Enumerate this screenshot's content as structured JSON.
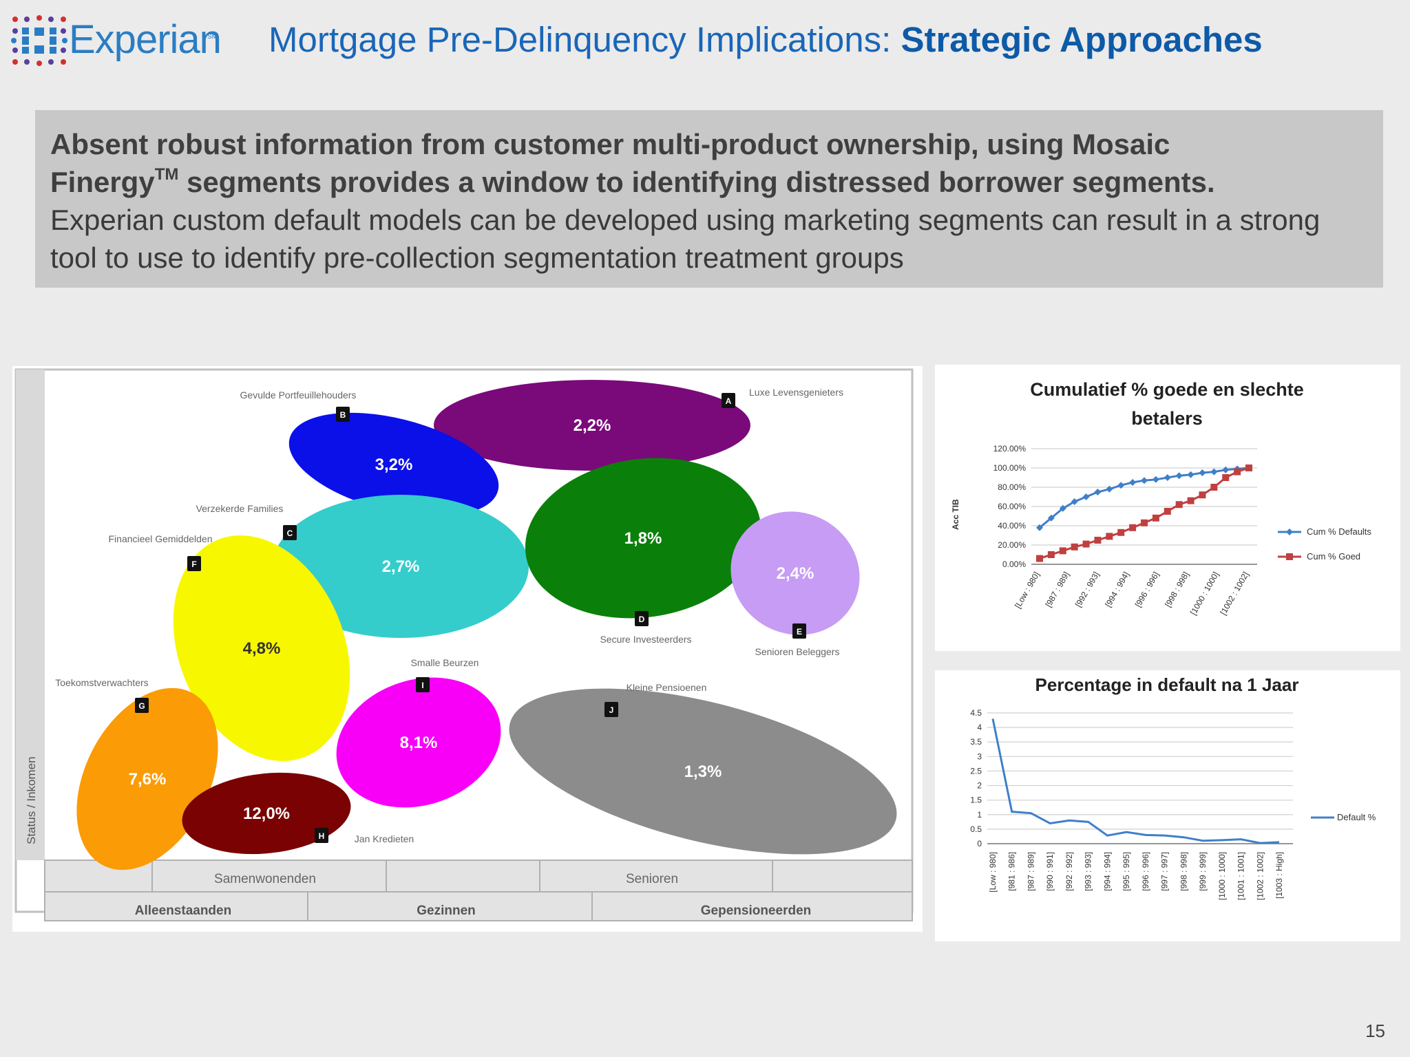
{
  "logo": {
    "text": "Experian",
    "mark": "SM"
  },
  "header": {
    "title_regular": "Mortgage Pre-Delinquency Implications: ",
    "title_bold": "Strategic Approaches"
  },
  "callout": {
    "bold_line1": "Absent robust information from customer multi-product ownership, using Mosaic",
    "bold_line2a": "Finergy",
    "bold_sup": "TM",
    "bold_line2b": " segments provides a window to identifying distressed borrower segments.",
    "body": "Experian custom default models can be developed using marketing segments can result in a strong tool to use to identify pre-collection segmentation treatment groups"
  },
  "page_number": "15",
  "colors": {
    "blue_title": "#1a66b8",
    "callout_bg": "#c8c8c8",
    "cum_defaults": "#3f7fc9",
    "cum_goed": "#c0403f",
    "default_line": "#3f7fc9"
  },
  "mosaic": {
    "y_axis_label": "Status / Inkomen",
    "row1_labels": [
      "Samenwonenden",
      "Senioren"
    ],
    "row2_labels": [
      "Alleenstaanden",
      "Gezinnen",
      "Gepensioneerden"
    ],
    "segments": [
      {
        "letter": "A",
        "name": "Luxe Levensgenieters",
        "value": "2,2%",
        "color": "#7a0a7a"
      },
      {
        "letter": "B",
        "name": "Gevulde Portfeuillehouders",
        "value": "3,2%",
        "color": "#0c10e8"
      },
      {
        "letter": "C",
        "name": "Verzekerde Families",
        "value": "2,7%",
        "color": "#35cccc"
      },
      {
        "letter": "D",
        "name": "Secure Investeerders",
        "value": "1,8%",
        "color": "#0a800a"
      },
      {
        "letter": "E",
        "name": "Senioren Beleggers",
        "value": "2,4%",
        "color": "#c79cf4"
      },
      {
        "letter": "F",
        "name": "Financieel Gemiddelden",
        "value": "4,8%",
        "color": "#f7f700"
      },
      {
        "letter": "G",
        "name": "Toekomstverwachters",
        "value": "7,6%",
        "color": "#fb9b06"
      },
      {
        "letter": "H",
        "name": "Jan Kredieten",
        "value": "12,0%",
        "color": "#7a0202"
      },
      {
        "letter": "I",
        "name": "Smalle Beurzen",
        "value": "8,1%",
        "color": "#f800f8"
      },
      {
        "letter": "J",
        "name": "Kleine Pensioenen",
        "value": "1,3%",
        "color": "#8c8c8c"
      }
    ]
  },
  "chart_data": [
    {
      "type": "line",
      "title": "Cumulatief % goede en slechte betalers",
      "ylabel": "Acc TIB",
      "ylim": [
        0,
        120
      ],
      "yticks": [
        "0.00%",
        "20.00%",
        "40.00%",
        "60.00%",
        "80.00%",
        "100.00%",
        "120.00%"
      ],
      "categories": [
        "[Low : 980]",
        "[987 : 989]",
        "[992 : 993]",
        "[994 : 994]",
        "[996 : 996]",
        "[998 : 998]",
        "[1000 : 1000]",
        "[1002 : 1002]"
      ],
      "x": [
        1,
        2,
        3,
        4,
        5,
        6,
        7,
        8,
        9,
        10,
        11,
        12,
        13,
        14,
        15,
        16,
        17,
        18,
        19
      ],
      "series": [
        {
          "name": "Cum % Defaults",
          "values": [
            38,
            48,
            58,
            65,
            70,
            75,
            78,
            82,
            85,
            87,
            88,
            90,
            92,
            93,
            95,
            96,
            98,
            99,
            100
          ]
        },
        {
          "name": "Cum % Goed",
          "values": [
            6,
            10,
            14,
            18,
            21,
            25,
            29,
            33,
            38,
            43,
            48,
            55,
            62,
            66,
            72,
            80,
            90,
            96,
            100
          ]
        }
      ],
      "legend": "right",
      "grid": true
    },
    {
      "type": "line",
      "title": "Percentage in default na 1 Jaar",
      "ylim": [
        0,
        4.5
      ],
      "yticks": [
        "0",
        "0.5",
        "1",
        "1.5",
        "2",
        "2.5",
        "3",
        "3.5",
        "4",
        "4.5"
      ],
      "categories": [
        "[Low : 980]",
        "[981 : 986]",
        "[987 : 989]",
        "[990 : 991]",
        "[992 : 992]",
        "[993 : 993]",
        "[994 : 994]",
        "[995 : 995]",
        "[996 : 996]",
        "[997 : 997]",
        "[998 : 998]",
        "[999 : 999]",
        "[1000 : 1000]",
        "[1001 : 1001]",
        "[1002 : 1002]",
        "[1003 : High]"
      ],
      "series": [
        {
          "name": "Default %",
          "values": [
            4.3,
            1.1,
            1.05,
            0.7,
            0.8,
            0.75,
            0.28,
            0.4,
            0.3,
            0.28,
            0.22,
            0.1,
            0.12,
            0.15,
            0.02,
            0.05
          ]
        }
      ],
      "legend": "right",
      "grid": true
    }
  ]
}
